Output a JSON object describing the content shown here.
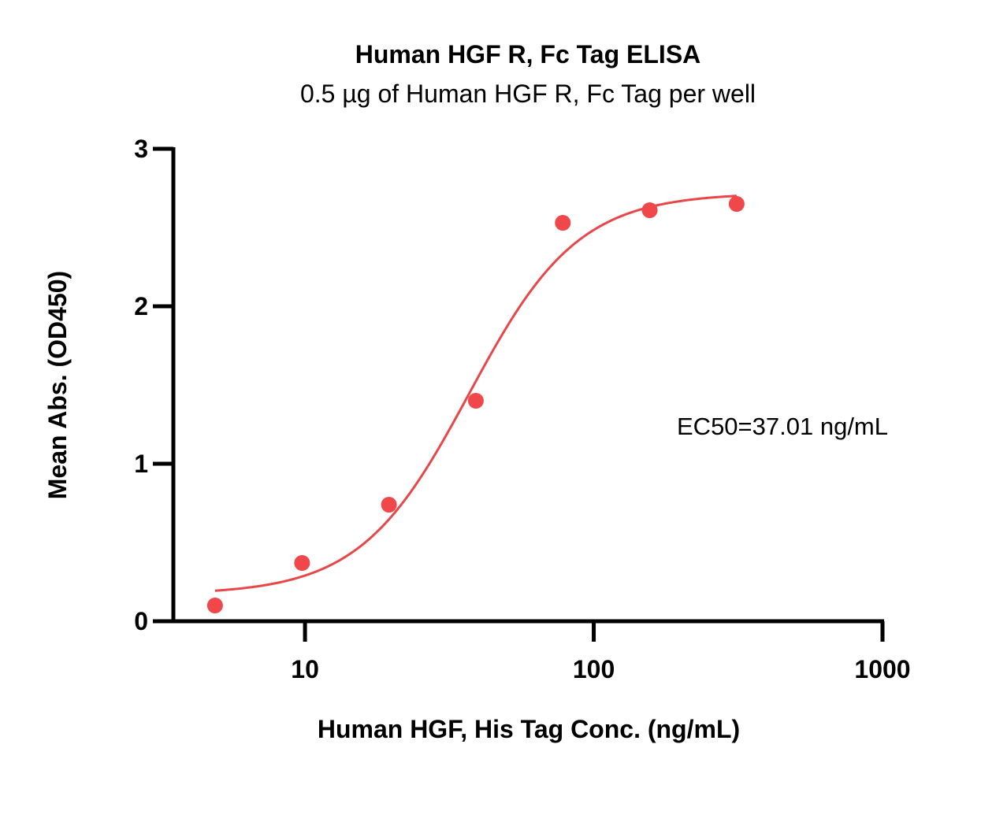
{
  "chart_data": {
    "type": "scatter",
    "title": "Human HGF R, Fc Tag ELISA",
    "subtitle": "0.5 µg of Human HGF R, Fc Tag per well",
    "xlabel": "Human HGF, His Tag Conc. (ng/mL)",
    "ylabel": "Mean Abs. (OD450)",
    "x_scale": "log",
    "xlim": [
      3.5,
      1000
    ],
    "ylim": [
      0,
      3
    ],
    "x_ticks": [
      10,
      100,
      1000
    ],
    "x_tick_labels": [
      "10",
      "100",
      "1000"
    ],
    "y_ticks": [
      0,
      1,
      2,
      3
    ],
    "y_tick_labels": [
      "0",
      "1",
      "2",
      "3"
    ],
    "grid": false,
    "series": [
      {
        "color": "#f0474b",
        "points": [
          {
            "x": 4.88,
            "y": 0.1
          },
          {
            "x": 9.77,
            "y": 0.37
          },
          {
            "x": 19.53,
            "y": 0.74
          },
          {
            "x": 39.06,
            "y": 1.4
          },
          {
            "x": 78.13,
            "y": 2.53
          },
          {
            "x": 156.25,
            "y": 2.61
          },
          {
            "x": 312.5,
            "y": 2.65
          }
        ],
        "fit": {
          "model": "4PL",
          "bottom": 0.17,
          "top": 2.72,
          "ec50": 37.01,
          "hill": 2.3,
          "color": "#e8474a"
        }
      }
    ],
    "annotations": [
      {
        "text": "EC50=37.01 ng/mL"
      }
    ]
  }
}
